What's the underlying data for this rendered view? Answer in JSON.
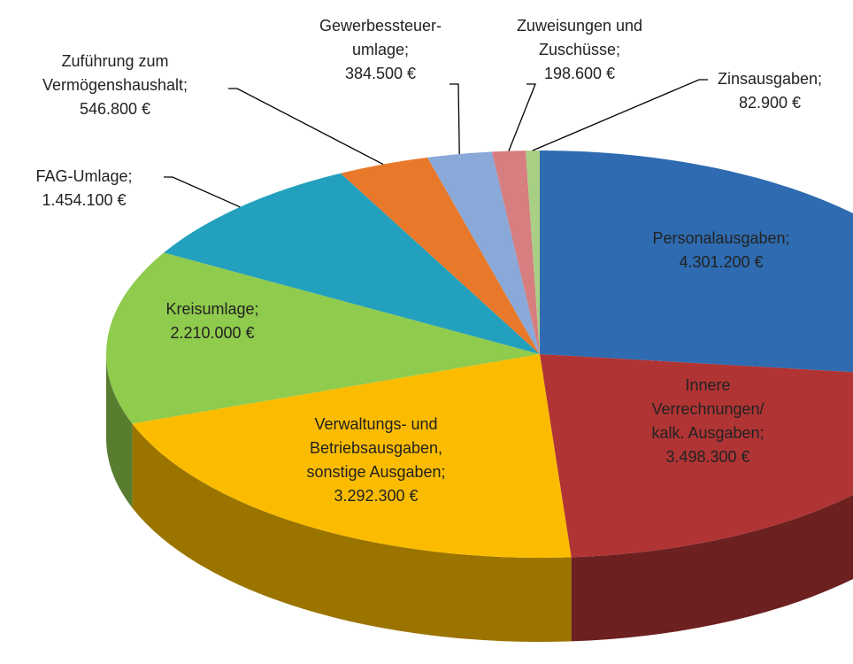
{
  "chart_data": {
    "type": "pie3d",
    "categories": [
      "Personalausgaben;",
      "Innere\nVerrechnungen/\nkalk. Ausgaben;",
      "Verwaltungs- und\nBetriebsausgaben,\nsonstige Ausgaben;",
      "Kreisumlage;",
      "FAG-Umlage;",
      "Zuführung zum\nVermögenshaushalt;",
      "Gewerbessteuer-\numlage;",
      "Zuweisungen und\nZuschüsse;",
      "Zinsausgaben;"
    ],
    "values": [
      4301200,
      3498300,
      3292300,
      2210000,
      1454100,
      546800,
      384500,
      198600,
      82900
    ],
    "value_labels": [
      "4.301.200 €",
      "3.498.300 €",
      "3.292.300 €",
      "2.210.000 €",
      "1.454.100 €",
      "546.800 €",
      "384.500 €",
      "198.600 €",
      "82.900 €"
    ],
    "colors": [
      "#2e6bb0",
      "#b03434",
      "#fbbc00",
      "#8fcb4d",
      "#23a0bd",
      "#e8792a",
      "#8aa8d8",
      "#d67e80",
      "#a9cf85"
    ]
  }
}
